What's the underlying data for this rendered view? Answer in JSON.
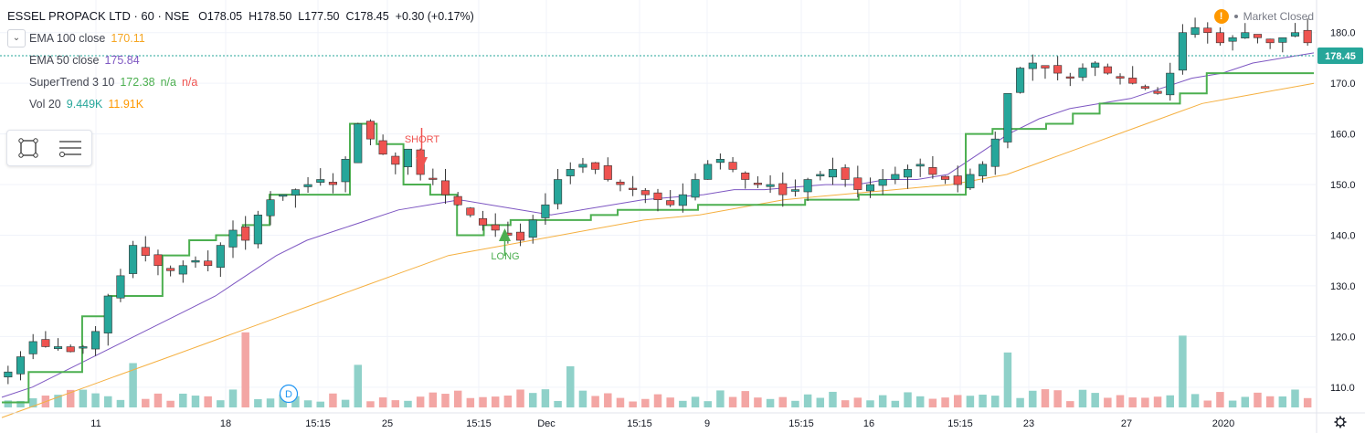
{
  "header": {
    "symbol": "ESSEL PROPACK LTD · 60 · NSE",
    "open_label": "O",
    "open": "178.05",
    "high_label": "H",
    "high": "178.50",
    "low_label": "L",
    "low": "177.50",
    "close_label": "C",
    "close": "178.45",
    "change": "+0.30 (+0.17%)"
  },
  "indicators": [
    {
      "name": "EMA 100 close",
      "values": [
        "170.11"
      ],
      "color": "#f5b041"
    },
    {
      "name": "EMA 50 close",
      "values": [
        "175.84"
      ],
      "color": "#7e57c2"
    },
    {
      "name": "SuperTrend 3 10",
      "values": [
        "172.38",
        "n/a",
        "n/a"
      ],
      "colors": [
        "#4caf50",
        "#4caf50",
        "#ef5350"
      ]
    },
    {
      "name": "Vol 20",
      "values": [
        "9.449K",
        "11.91K"
      ],
      "colors": [
        "#26a69a",
        "#ff9800"
      ]
    }
  ],
  "market_status": "Market Closed",
  "current_price_label": "178.45",
  "colors": {
    "up": "#26a69a",
    "down": "#ef5350",
    "supertrend": "#4caf50",
    "ema50": "#7e57c2",
    "ema100": "#f5b041",
    "vol_up": "#8fd1c9",
    "vol_down": "#f3a6a4"
  },
  "chart_data": {
    "type": "candlestick",
    "y_axis": {
      "ticks": [
        110,
        120,
        130,
        140,
        150,
        160,
        170,
        180
      ],
      "range": [
        106,
        185
      ]
    },
    "x_axis": {
      "labels": [
        "11",
        "18",
        "15:15",
        "25",
        "15:15",
        "Dec",
        "15:15",
        "9",
        "15:15",
        "16",
        "15:15",
        "23",
        "27",
        "2020"
      ]
    },
    "annotations": [
      {
        "text": "SHORT",
        "type": "sell",
        "price": 164
      },
      {
        "text": "LONG",
        "type": "buy",
        "price": 139
      },
      {
        "text": "D",
        "type": "dividend"
      }
    ],
    "close_path": [
      113,
      116,
      119,
      118,
      118,
      117,
      118,
      121,
      128,
      132,
      138,
      136,
      134,
      133,
      134,
      135,
      134,
      138,
      141,
      139,
      144,
      147,
      148,
      149,
      150,
      151,
      150,
      155,
      162,
      159,
      156,
      154,
      157,
      152,
      151,
      148,
      146,
      144,
      142,
      141,
      140,
      139,
      143,
      146,
      151,
      153,
      154,
      153,
      151,
      150,
      149,
      148,
      147,
      146,
      148,
      151,
      154,
      155,
      153,
      151,
      150,
      150,
      148,
      149,
      151,
      152,
      153,
      151,
      149,
      150,
      151,
      152,
      153,
      154,
      152,
      151,
      150,
      152,
      154,
      159,
      168,
      173,
      174,
      173,
      172,
      171,
      173,
      174,
      172,
      171,
      170,
      169,
      168,
      172,
      180,
      181,
      180,
      178,
      179,
      180,
      179,
      178,
      179,
      180,
      178
    ],
    "ema100_path": [
      104,
      106,
      108,
      110,
      112,
      114,
      116,
      118,
      120,
      122,
      124,
      126,
      128,
      130,
      132,
      134,
      136,
      137,
      138,
      139,
      140,
      141,
      142,
      143,
      143.5,
      144,
      145,
      146,
      147,
      147.5,
      148,
      148.5,
      149,
      149.5,
      150,
      151,
      152,
      154,
      156,
      158,
      160,
      162,
      164,
      166,
      167,
      168,
      169,
      170
    ],
    "ema50_path": [
      108,
      110,
      113,
      116,
      119,
      122,
      125,
      128,
      132,
      136,
      139,
      141,
      143,
      145,
      146,
      147,
      146,
      145,
      144,
      145,
      146,
      147,
      147.5,
      148,
      149,
      149,
      149.5,
      150,
      150,
      151,
      151,
      152,
      156,
      160,
      163,
      165,
      166,
      167,
      169,
      171,
      172,
      174,
      175,
      176
    ],
    "supertrend_path": [
      107,
      113,
      113,
      124,
      128,
      128,
      136,
      139,
      140,
      142,
      148,
      148,
      148,
      162,
      158,
      150,
      148,
      140,
      142,
      143,
      143,
      143,
      144,
      145,
      145,
      145,
      146,
      146,
      146,
      146,
      147,
      147,
      148,
      148,
      148,
      148,
      160,
      161,
      161,
      162,
      164,
      166,
      166,
      166,
      168,
      172,
      172,
      172,
      172,
      172
    ]
  }
}
